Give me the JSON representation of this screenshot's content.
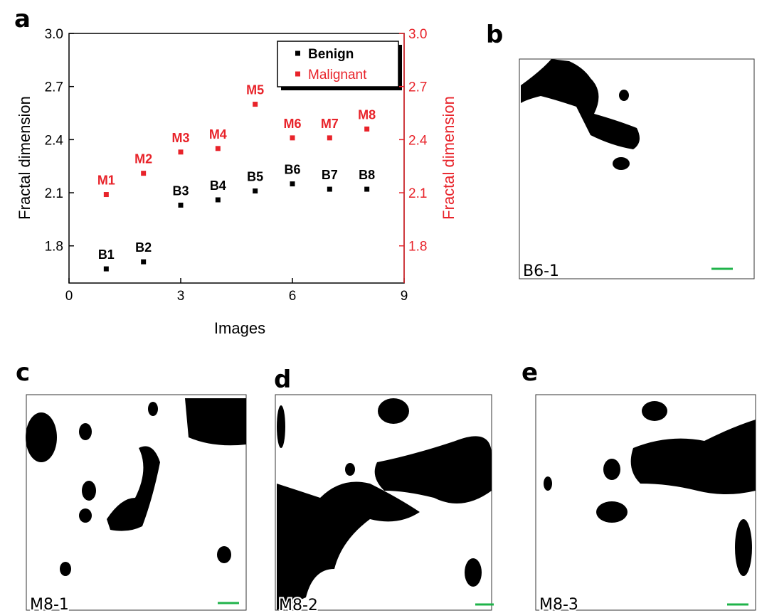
{
  "chart_data": {
    "type": "scatter",
    "xlabel": "Images",
    "ylabel": "Fractal dimension",
    "y2label": "Fractal dimension",
    "x": [
      1,
      2,
      3,
      4,
      5,
      6,
      7,
      8
    ],
    "series": [
      {
        "name": "Benign",
        "color": "#000000",
        "values": [
          1.67,
          1.71,
          2.03,
          2.06,
          2.11,
          2.15,
          2.12,
          2.12
        ],
        "point_labels": [
          "B1",
          "B2",
          "B3",
          "B4",
          "B5",
          "B6",
          "B7",
          "B8"
        ]
      },
      {
        "name": "Malignant",
        "color": "#e8232a",
        "axis": "y2",
        "values": [
          2.09,
          2.21,
          2.33,
          2.35,
          2.6,
          2.41,
          2.41,
          2.46
        ],
        "point_labels": [
          "M1",
          "M2",
          "M3",
          "M4",
          "M5",
          "M6",
          "M7",
          "M8"
        ]
      }
    ],
    "xlim": [
      0,
      9
    ],
    "xticks": [
      0,
      3,
      6,
      9
    ],
    "ylim": [
      1.59,
      3.0
    ],
    "yticks": [
      1.8,
      2.1,
      2.4,
      2.7,
      {
        "value": 3.0,
        "label": "3.0"
      }
    ],
    "y2lim": [
      1.59,
      3.0
    ],
    "y2ticks": [
      1.8,
      2.1,
      2.4,
      2.7,
      {
        "value": 3.0,
        "label": "3.0"
      }
    ],
    "y2color": "#e8232a",
    "legend": "top-right",
    "grid": false
  },
  "panel_label": "a",
  "images": [
    {
      "letter": "b",
      "label": "B6-1"
    },
    {
      "letter": "c",
      "label": "M8-1"
    },
    {
      "letter": "d",
      "label": "M8-2"
    },
    {
      "letter": "e",
      "label": "M8-3"
    }
  ]
}
